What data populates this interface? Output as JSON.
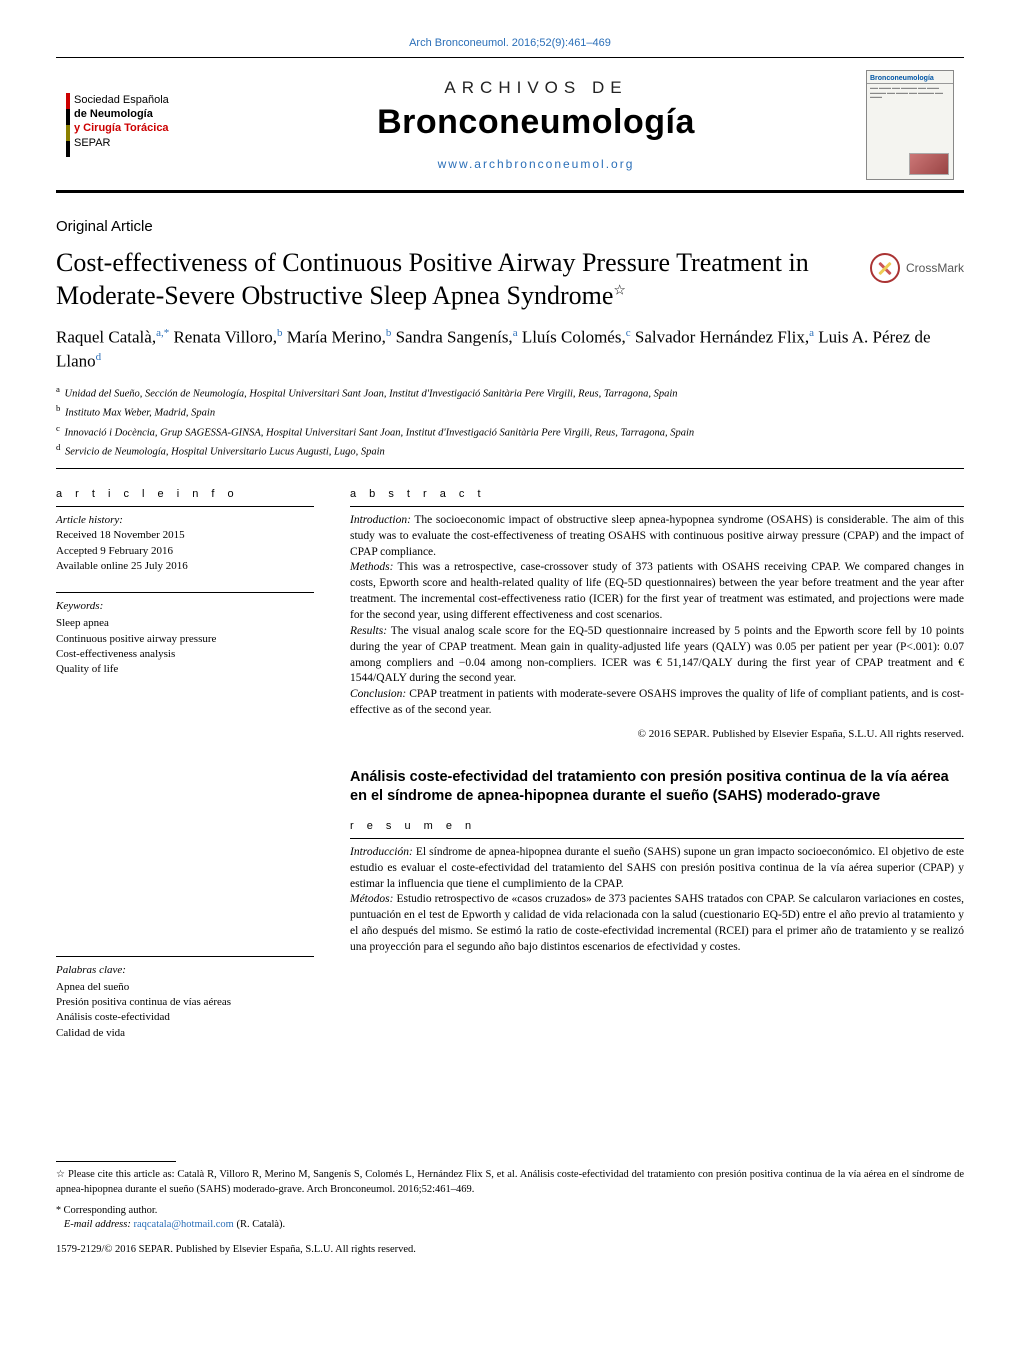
{
  "top_citation": "Arch Bronconeumol. 2016;52(9):461–469",
  "masthead": {
    "society_l1": "Sociedad Española",
    "society_l2": "de Neumología",
    "society_l3": "y Cirugía Torácica",
    "society_l4": "SEPAR",
    "overline": "ARCHIVOS DE",
    "title": "Bronconeumología",
    "site": "www.archbronconeumol.org",
    "cover_brand": "Bronconeumología"
  },
  "article": {
    "section": "Original Article",
    "title": "Cost-effectiveness of Continuous Positive Airway Pressure Treatment in Moderate-Severe Obstructive Sleep Apnea Syndrome",
    "title_star": "☆",
    "crossmark": "CrossMark",
    "authors_html": "Raquel Català,<sup>a,</sup><span class='star'>*</span> Renata Villoro,<sup>b</sup> María Merino,<sup>b</sup> Sandra Sangenís,<sup>a</sup> Lluís Colomés,<sup>c</sup> Salvador Hernández Flix,<sup>a</sup> Luis A. Pérez de Llano<sup>d</sup>",
    "affiliations": [
      {
        "tag": "a",
        "text": "Unidad del Sueño, Sección de Neumología, Hospital Universitari Sant Joan, Institut d'Investigació Sanitària Pere Virgili, Reus, Tarragona, Spain"
      },
      {
        "tag": "b",
        "text": "Instituto Max Weber, Madrid, Spain"
      },
      {
        "tag": "c",
        "text": "Innovació i Docència, Grup SAGESSA-GINSA, Hospital Universitari Sant Joan, Institut d'Investigació Sanitària Pere Virgili, Reus, Tarragona, Spain"
      },
      {
        "tag": "d",
        "text": "Servicio de Neumología, Hospital Universitario Lucus Augusti, Lugo, Spain"
      }
    ]
  },
  "info_block": {
    "head": "a r t i c l e   i n f o",
    "history_label": "Article history:",
    "received": "Received 18 November 2015",
    "accepted": "Accepted 9 February 2016",
    "online": "Available online 25 July 2016",
    "kw_label_en": "Keywords:",
    "keywords_en": [
      "Sleep apnea",
      "Continuous positive airway pressure",
      "Cost-effectiveness analysis",
      "Quality of life"
    ],
    "kw_label_es": "Palabras clave:",
    "keywords_es": [
      "Apnea del sueño",
      "Presión positiva continua de vías aéreas",
      "Análisis coste-efectividad",
      "Calidad de vida"
    ]
  },
  "abstract": {
    "head": "a b s t r a c t",
    "intro_lbl": "Introduction:",
    "intro": " The socioeconomic impact of obstructive sleep apnea-hypopnea syndrome (OSAHS) is considerable. The aim of this study was to evaluate the cost-effectiveness of treating OSAHS with continuous positive airway pressure (CPAP) and the impact of CPAP compliance.",
    "methods_lbl": "Methods:",
    "methods": " This was a retrospective, case-crossover study of 373 patients with OSAHS receiving CPAP. We compared changes in costs, Epworth score and health-related quality of life (EQ-5D questionnaires) between the year before treatment and the year after treatment. The incremental cost-effectiveness ratio (ICER) for the first year of treatment was estimated, and projections were made for the second year, using different effectiveness and cost scenarios.",
    "results_lbl": "Results:",
    "results": " The visual analog scale score for the EQ-5D questionnaire increased by 5 points and the Epworth score fell by 10 points during the year of CPAP treatment. Mean gain in quality-adjusted life years (QALY) was 0.05 per patient per year (P<.001): 0.07 among compliers and −0.04 among non-compliers. ICER was € 51,147/QALY during the first year of CPAP treatment and € 1544/QALY during the second year.",
    "conclusion_lbl": "Conclusion:",
    "conclusion": " CPAP treatment in patients with moderate-severe OSAHS improves the quality of life of compliant patients, and is cost-effective as of the second year.",
    "copyright": "© 2016 SEPAR. Published by Elsevier España, S.L.U. All rights reserved."
  },
  "es": {
    "title": "Análisis coste-efectividad del tratamiento con presión positiva continua de la vía aérea en el síndrome de apnea-hipopnea durante el sueño (SAHS) moderado-grave",
    "head": "r e s u m e n",
    "intro_lbl": "Introducción:",
    "intro": " El síndrome de apnea-hipopnea durante el sueño (SAHS) supone un gran impacto socioeconómico. El objetivo de este estudio es evaluar el coste-efectividad del tratamiento del SAHS con presión positiva continua de la vía aérea superior (CPAP) y estimar la influencia que tiene el cumplimiento de la CPAP.",
    "methods_lbl": "Métodos:",
    "methods": " Estudio retrospectivo de «casos cruzados» de 373 pacientes SAHS tratados con CPAP. Se calcularon variaciones en costes, puntuación en el test de Epworth y calidad de vida relacionada con la salud (cuestionario EQ-5D) entre el año previo al tratamiento y el año después del mismo. Se estimó la ratio de coste-efectividad incremental (RCEI) para el primer año de tratamiento y se realizó una proyección para el segundo año bajo distintos escenarios de efectividad y costes."
  },
  "footnotes": {
    "cite": "Please cite this article as: Català R, Villoro R, Merino M, Sangenís S, Colomés L, Hernández Flix S, et al. Análisis coste-efectividad del tratamiento con presión positiva continua de la vía aérea en el síndrome de apnea-hipopnea durante el sueño (SAHS) moderado-grave. Arch Bronconeumol. 2016;52:461–469.",
    "corr_lbl": "Corresponding author.",
    "email_lbl": "E-mail address:",
    "email": "raqcatala@hotmail.com",
    "email_who": "(R. Català).",
    "issn_line": "1579-2129/© 2016 SEPAR. Published by Elsevier España, S.L.U. All rights reserved."
  },
  "colors": {
    "link": "#2b6fb8",
    "accent_red": "#c00"
  }
}
